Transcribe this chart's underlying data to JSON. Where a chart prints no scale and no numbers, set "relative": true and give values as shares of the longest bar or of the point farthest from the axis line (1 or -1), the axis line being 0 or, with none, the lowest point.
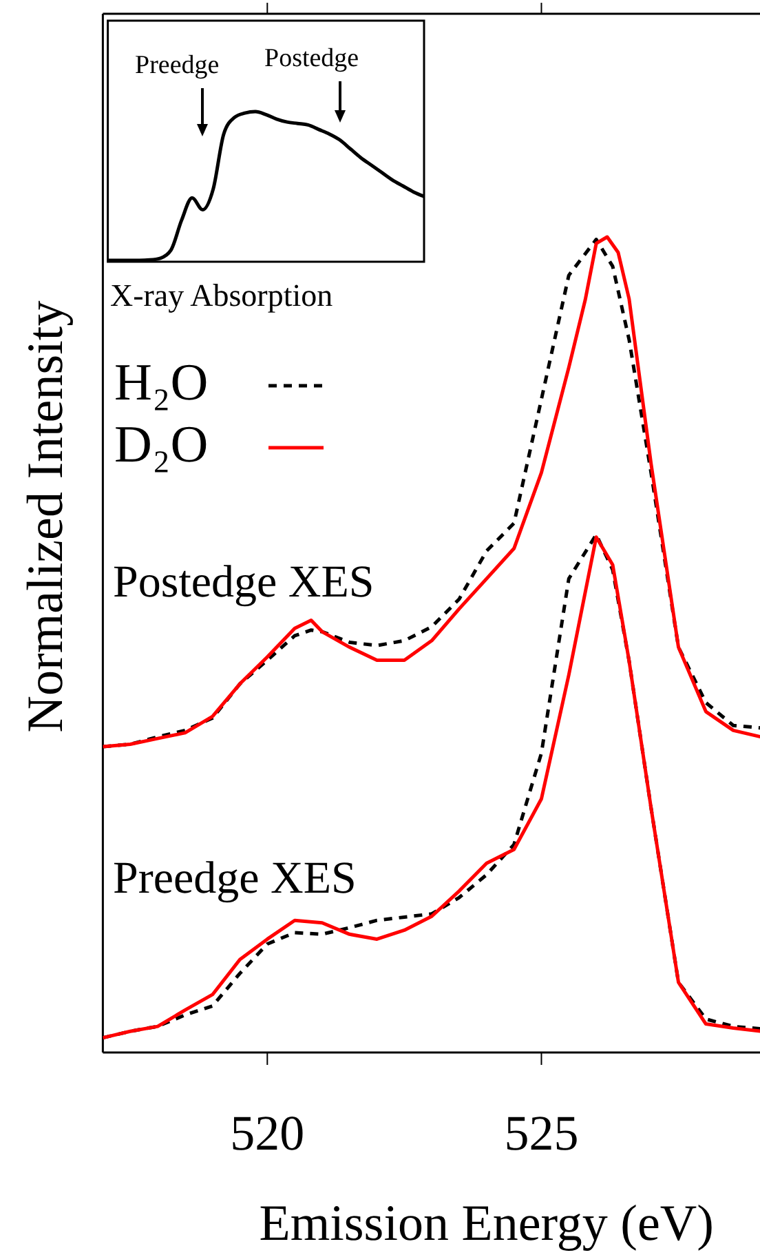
{
  "chart_data": [
    {
      "type": "line",
      "xlabel": "Emission Energy (eV)",
      "ylabel": "Normalized Intensity",
      "relative": true,
      "xlim": [
        517,
        529
      ],
      "xticks": [
        520,
        525
      ],
      "legend": "top left",
      "annotations": [
        "Postedge XES",
        "Preedge XES"
      ],
      "series": [
        {
          "name": "H₂O",
          "color": "#000000",
          "line_style": "dashed",
          "x": [
            517,
            517.5,
            518,
            518.5,
            519,
            519.5,
            520,
            520.5,
            520.8,
            521,
            521.5,
            522,
            522.5,
            523,
            523.5,
            524,
            524.5,
            525,
            525.5,
            526,
            526.3,
            526.6,
            527,
            527.5,
            528,
            528.5,
            529
          ],
          "values": [
            0.375,
            0.378,
            0.387,
            0.395,
            0.41,
            0.452,
            0.481,
            0.511,
            0.518,
            0.516,
            0.503,
            0.499,
            0.505,
            0.522,
            0.556,
            0.615,
            0.649,
            0.801,
            0.953,
            0.997,
            0.964,
            0.874,
            0.711,
            0.497,
            0.429,
            0.401,
            0.398
          ]
        },
        {
          "name": "D₂O",
          "color": "#ff0000",
          "line_style": "solid",
          "x": [
            517,
            517.5,
            518,
            518.5,
            519,
            519.5,
            520,
            520.5,
            520.8,
            521,
            521.5,
            522,
            522.5,
            523,
            523.5,
            524,
            524.5,
            525,
            525.5,
            525.8,
            526,
            526.2,
            526.4,
            526.6,
            527,
            527.5,
            528,
            528.5,
            529
          ],
          "values": [
            0.375,
            0.378,
            0.385,
            0.392,
            0.412,
            0.452,
            0.485,
            0.52,
            0.53,
            0.516,
            0.497,
            0.481,
            0.481,
            0.505,
            0.544,
            0.581,
            0.618,
            0.711,
            0.84,
            0.923,
            0.992,
            1,
            0.981,
            0.924,
            0.722,
            0.497,
            0.418,
            0.395,
            0.387
          ]
        },
        {
          "color": "#000000",
          "line_style": "dashed",
          "x": [
            517,
            517.5,
            518,
            518.5,
            519,
            519.5,
            520,
            520.5,
            521,
            521.5,
            522,
            522.5,
            523,
            523.5,
            524,
            524.5,
            525,
            525.5,
            526,
            526.3,
            526.6,
            527,
            527.5,
            528,
            528.5,
            529
          ],
          "values": [
            0.018,
            0.026,
            0.032,
            0.046,
            0.057,
            0.097,
            0.133,
            0.147,
            0.145,
            0.153,
            0.162,
            0.166,
            0.17,
            0.19,
            0.218,
            0.255,
            0.367,
            0.581,
            0.635,
            0.592,
            0.48,
            0.3,
            0.086,
            0.041,
            0.032,
            0.029
          ]
        },
        {
          "color": "#ff0000",
          "line_style": "solid",
          "x": [
            517,
            517.5,
            518,
            518.5,
            519,
            519.5,
            520,
            520.5,
            521,
            521.5,
            522,
            522.5,
            523,
            523.5,
            524,
            524.5,
            525,
            525.5,
            526,
            526.3,
            526.6,
            527,
            527.5,
            528,
            528.5,
            529
          ],
          "values": [
            0.018,
            0.026,
            0.032,
            0.052,
            0.071,
            0.114,
            0.139,
            0.162,
            0.159,
            0.145,
            0.139,
            0.15,
            0.167,
            0.198,
            0.232,
            0.249,
            0.311,
            0.463,
            0.632,
            0.598,
            0.48,
            0.3,
            0.086,
            0.035,
            0.03,
            0.026
          ]
        }
      ]
    },
    {
      "type": "line",
      "xlabel": "X-ray Absorption",
      "relative": true,
      "color": "#000000",
      "annotations": [
        "Preedge",
        "Postedge"
      ],
      "categories": [
        null,
        null,
        null,
        null,
        null,
        null,
        null,
        null,
        null,
        null,
        null,
        null,
        null,
        null,
        null,
        null,
        null,
        null,
        null,
        null,
        null,
        null,
        null,
        null,
        null,
        null,
        null,
        null,
        null,
        null,
        null
      ],
      "values": [
        0,
        0,
        0,
        0,
        0.003,
        0.015,
        0.07,
        0.27,
        0.42,
        0.34,
        0.48,
        0.85,
        0.96,
        0.99,
        1,
        0.98,
        0.95,
        0.93,
        0.92,
        0.91,
        0.88,
        0.85,
        0.81,
        0.75,
        0.69,
        0.64,
        0.59,
        0.54,
        0.5,
        0.46,
        0.43
      ]
    }
  ]
}
